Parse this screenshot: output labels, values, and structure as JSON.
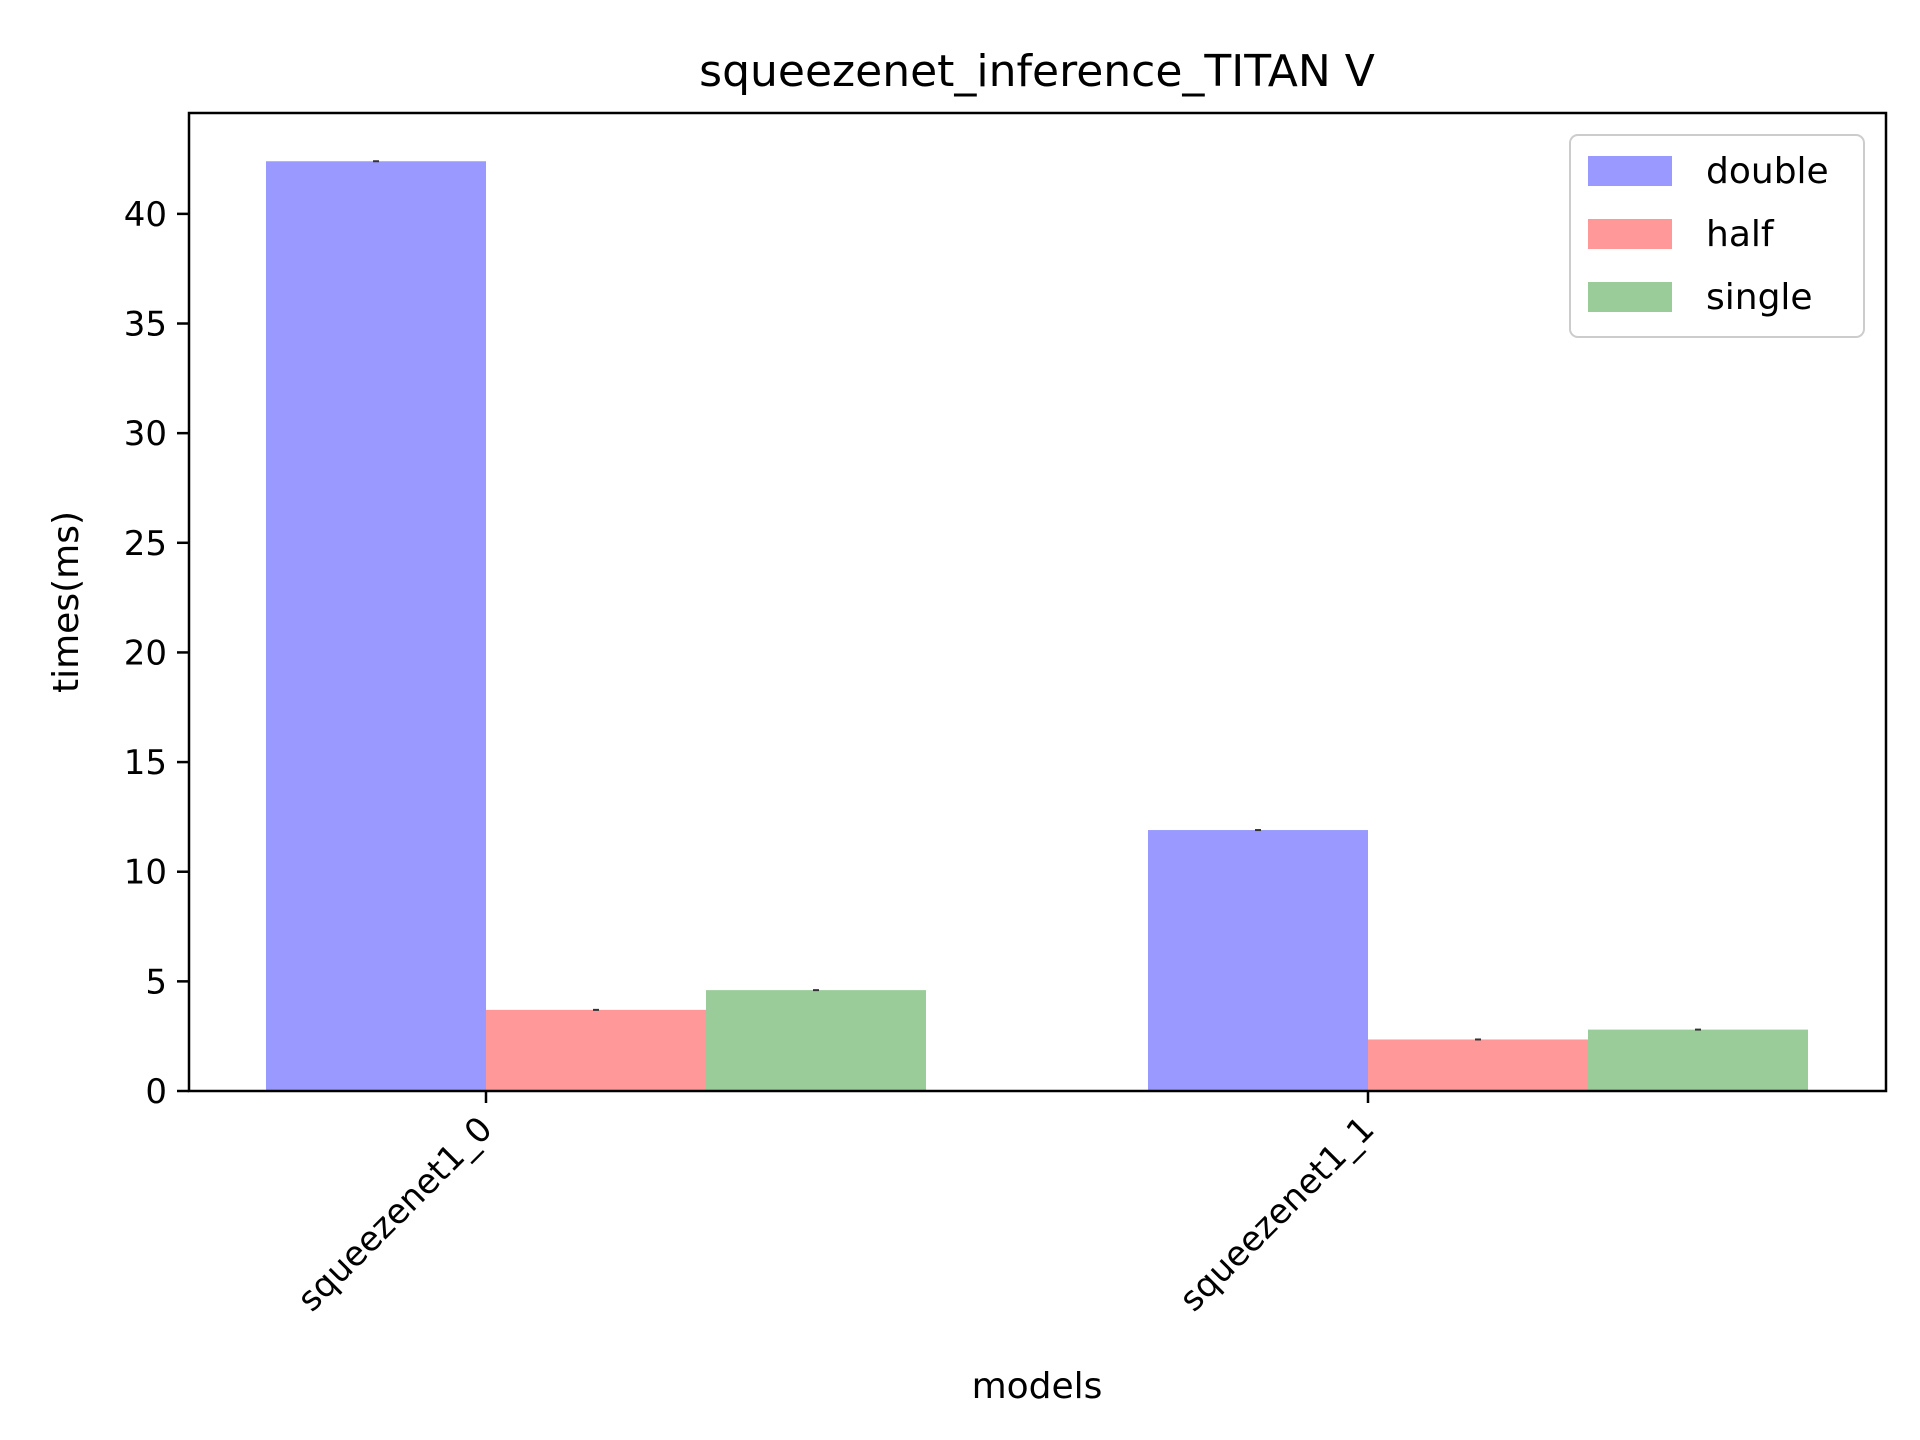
{
  "chart_data": {
    "type": "bar",
    "title": "squeezenet_inference_TITAN V",
    "xlabel": "models",
    "ylabel": "times(ms)",
    "categories": [
      "squeezenet1_0",
      "squeezenet1_1"
    ],
    "series": [
      {
        "name": "double",
        "color": "#9999ff",
        "values": [
          42.4,
          11.9
        ]
      },
      {
        "name": "half",
        "color": "#ff9999",
        "values": [
          3.7,
          2.35
        ]
      },
      {
        "name": "single",
        "color": "#99cc99",
        "values": [
          4.6,
          2.8
        ]
      }
    ],
    "ylim": [
      0,
      44.6
    ],
    "yticks": [
      0,
      5,
      10,
      15,
      20,
      25,
      30,
      35,
      40
    ],
    "grid": false,
    "legend_position": "top-right"
  }
}
